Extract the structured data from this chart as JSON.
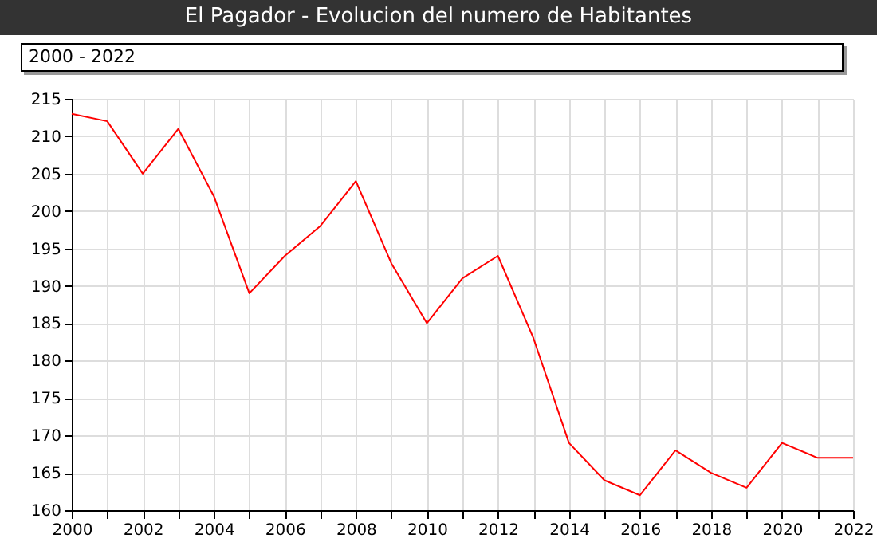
{
  "chart_data": {
    "type": "line",
    "title": "El Pagador - Evolucion del numero de Habitantes",
    "subtitle": "2000 - 2022",
    "x": [
      2000,
      2001,
      2002,
      2003,
      2004,
      2005,
      2006,
      2007,
      2008,
      2009,
      2010,
      2011,
      2012,
      2013,
      2014,
      2015,
      2016,
      2017,
      2018,
      2019,
      2020,
      2021,
      2022
    ],
    "series": [
      {
        "color": "#ff0000",
        "values": [
          213,
          212,
          205,
          211,
          202,
          189,
          194,
          198,
          204,
          193,
          185,
          191,
          194,
          183,
          169,
          164,
          162,
          168,
          165,
          163,
          169,
          167,
          167
        ]
      }
    ],
    "xlim": [
      2000,
      2022
    ],
    "xticks": [
      2000,
      {
        "value": 2001,
        "label": null
      },
      2002,
      {
        "value": 2003,
        "label": null
      },
      2004,
      {
        "value": 2005,
        "label": null
      },
      2006,
      {
        "value": 2007,
        "label": null
      },
      2008,
      {
        "value": 2009,
        "label": null
      },
      2010,
      {
        "value": 2011,
        "label": null
      },
      2012,
      {
        "value": 2013,
        "label": null
      },
      2014,
      {
        "value": 2015,
        "label": null
      },
      2016,
      {
        "value": 2017,
        "label": null
      },
      2018,
      {
        "value": 2019,
        "label": null
      },
      2020,
      {
        "value": 2021,
        "label": null
      },
      2022
    ],
    "ylim": [
      160,
      215
    ],
    "yticks": [
      160,
      165,
      170,
      175,
      180,
      185,
      190,
      195,
      200,
      205,
      210,
      215
    ],
    "grid": true,
    "marker": "none",
    "line_style": "solid"
  }
}
